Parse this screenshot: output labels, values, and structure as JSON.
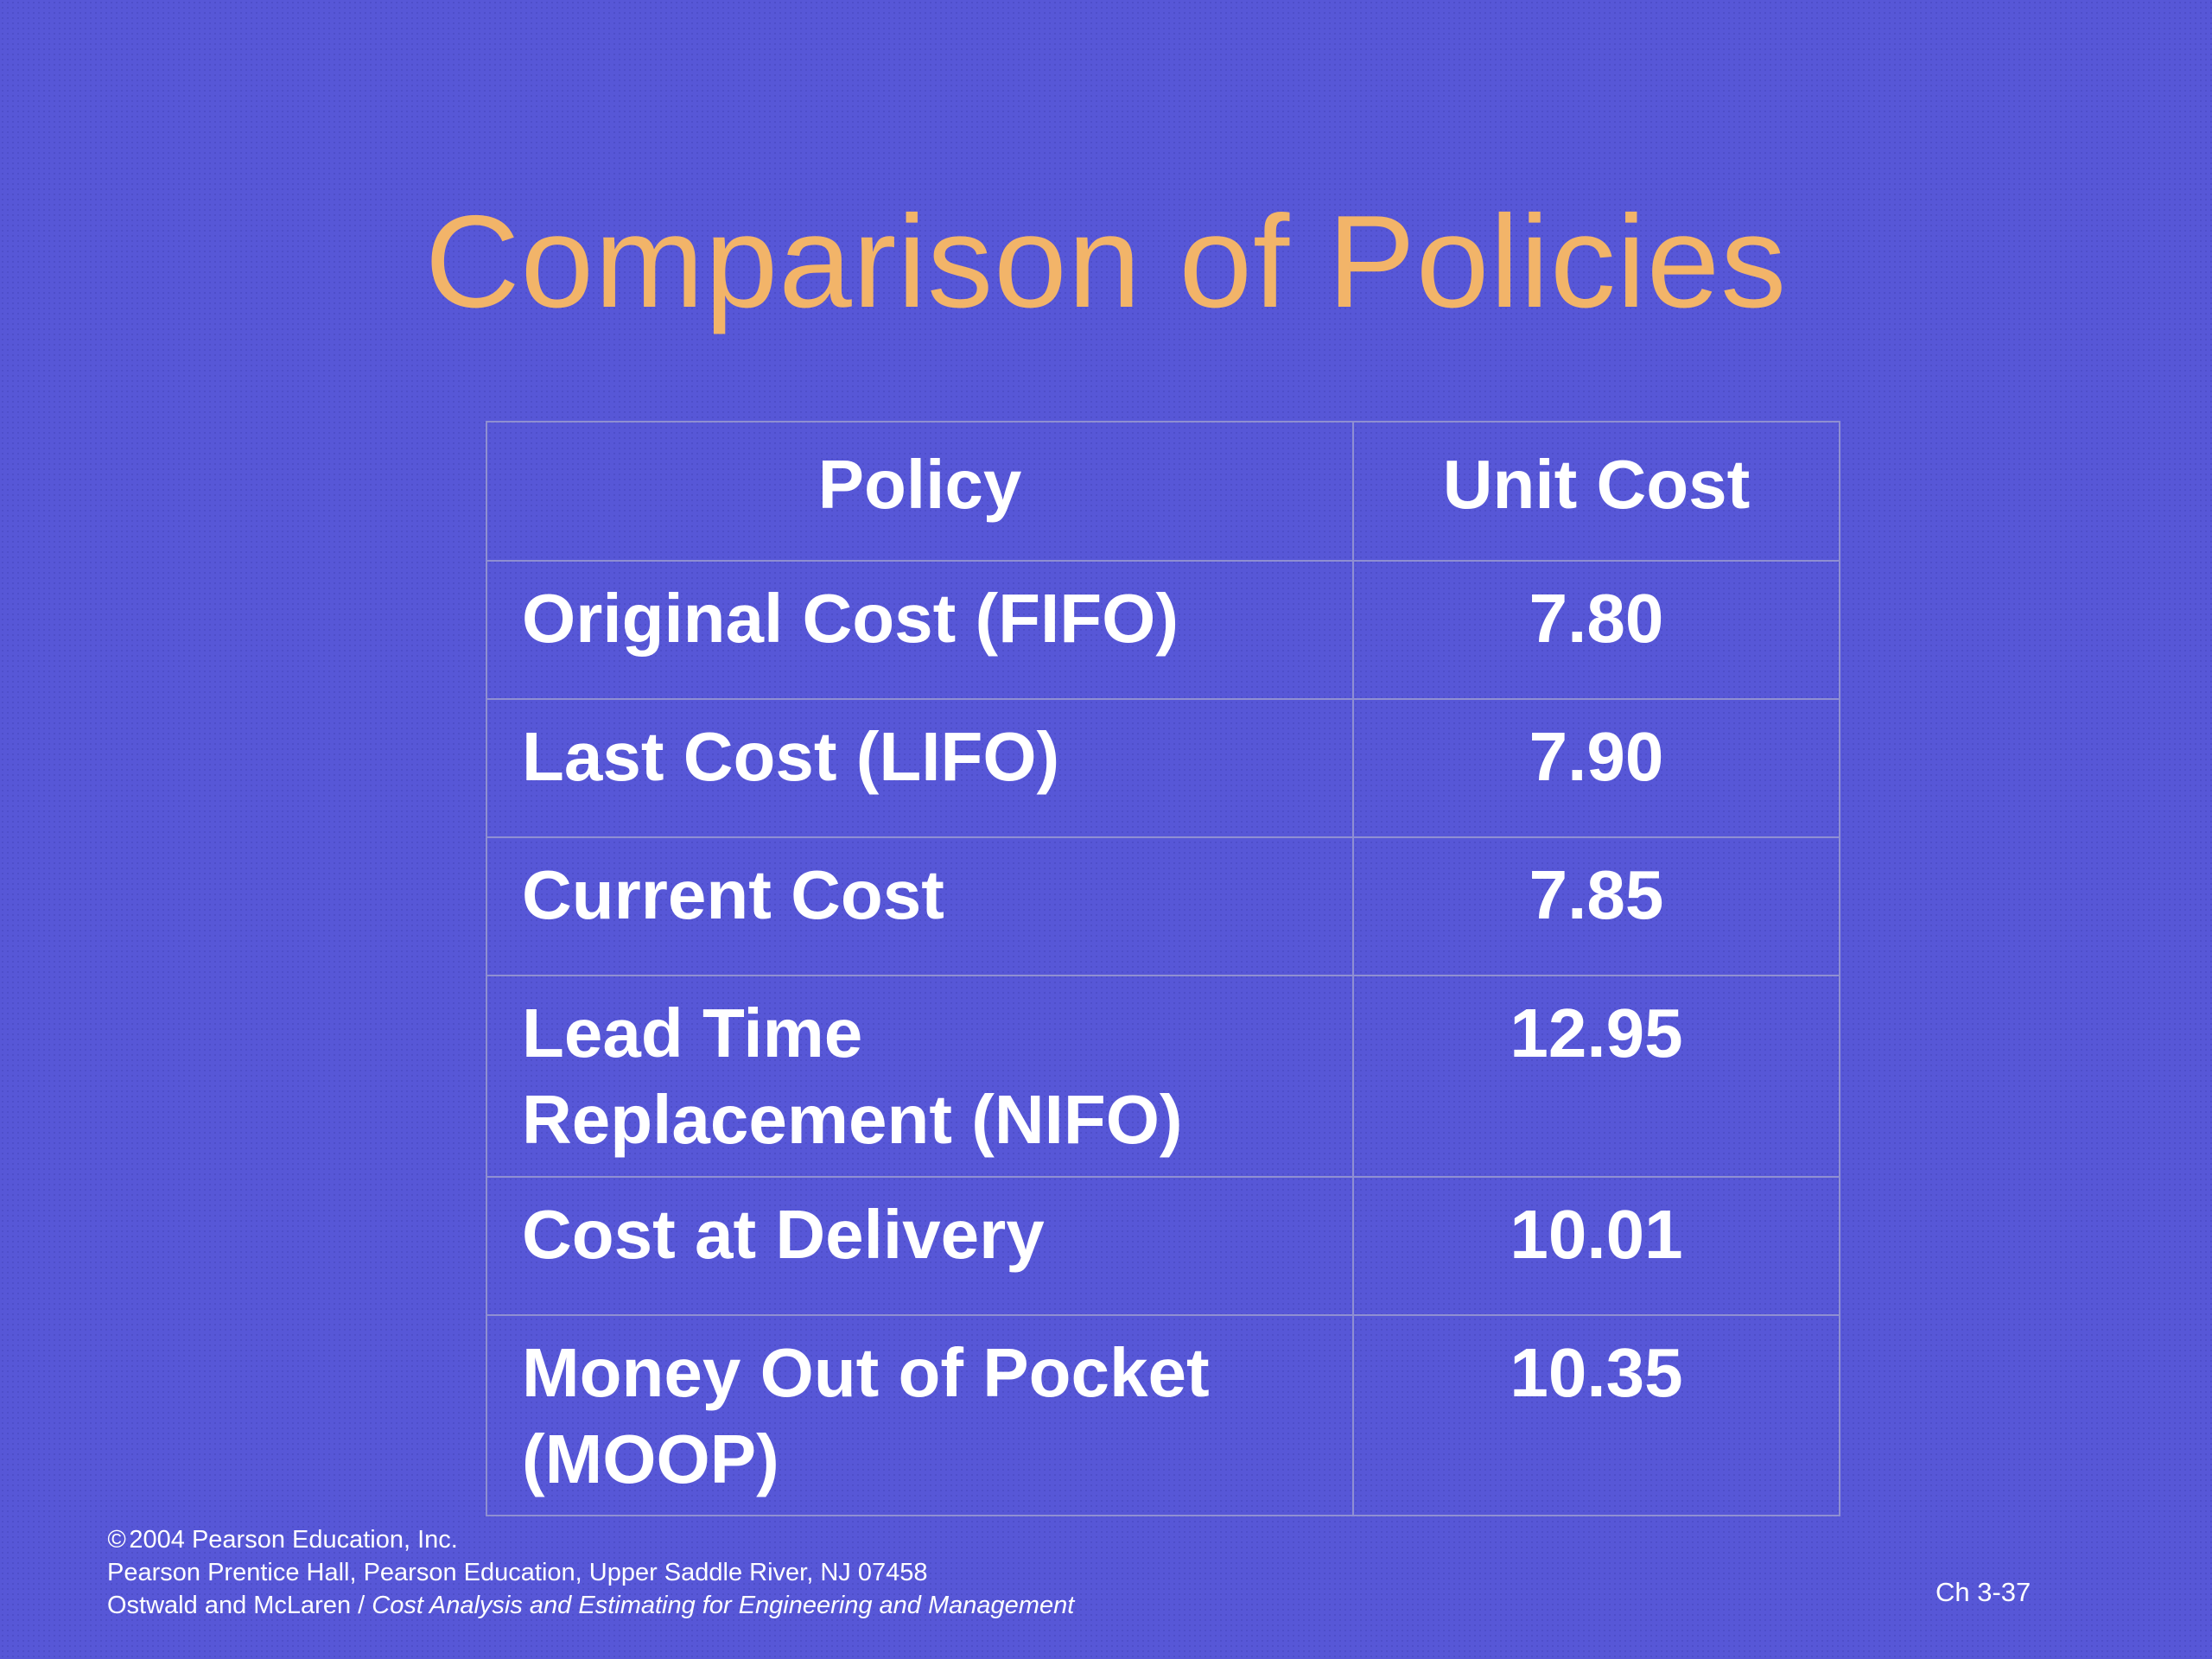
{
  "slide": {
    "title": "Comparison of Policies"
  },
  "table": {
    "headers": [
      "Policy",
      "Unit Cost"
    ],
    "rows": [
      {
        "policy": "Original Cost (FIFO)",
        "unit_cost": "7.80"
      },
      {
        "policy": "Last Cost (LIFO)",
        "unit_cost": "7.90"
      },
      {
        "policy": "Current Cost",
        "unit_cost": "7.85"
      },
      {
        "policy_line1": "Lead Time",
        "policy_line2": "Replacement (NIFO)",
        "unit_cost": "12.95"
      },
      {
        "policy": "Cost at Delivery",
        "unit_cost": "10.01"
      },
      {
        "policy_line1": "Money Out of Pocket",
        "policy_line2": "(MOOP)",
        "unit_cost": "10.35"
      }
    ]
  },
  "footer": {
    "copyright_symbol": "©",
    "copyright": "2004 Pearson Education, Inc.",
    "publisher": "Pearson Prentice Hall, Pearson Education, Upper Saddle River, NJ 07458",
    "authors": "Ostwald and McLaren / ",
    "book_title": "Cost Analysis and Estimating for Engineering and Management",
    "page_number": "Ch 3-37"
  },
  "colors": {
    "background": "#5757d7",
    "title": "#f2b469",
    "text": "#ffffff",
    "table_border": "#8f8fd2"
  }
}
